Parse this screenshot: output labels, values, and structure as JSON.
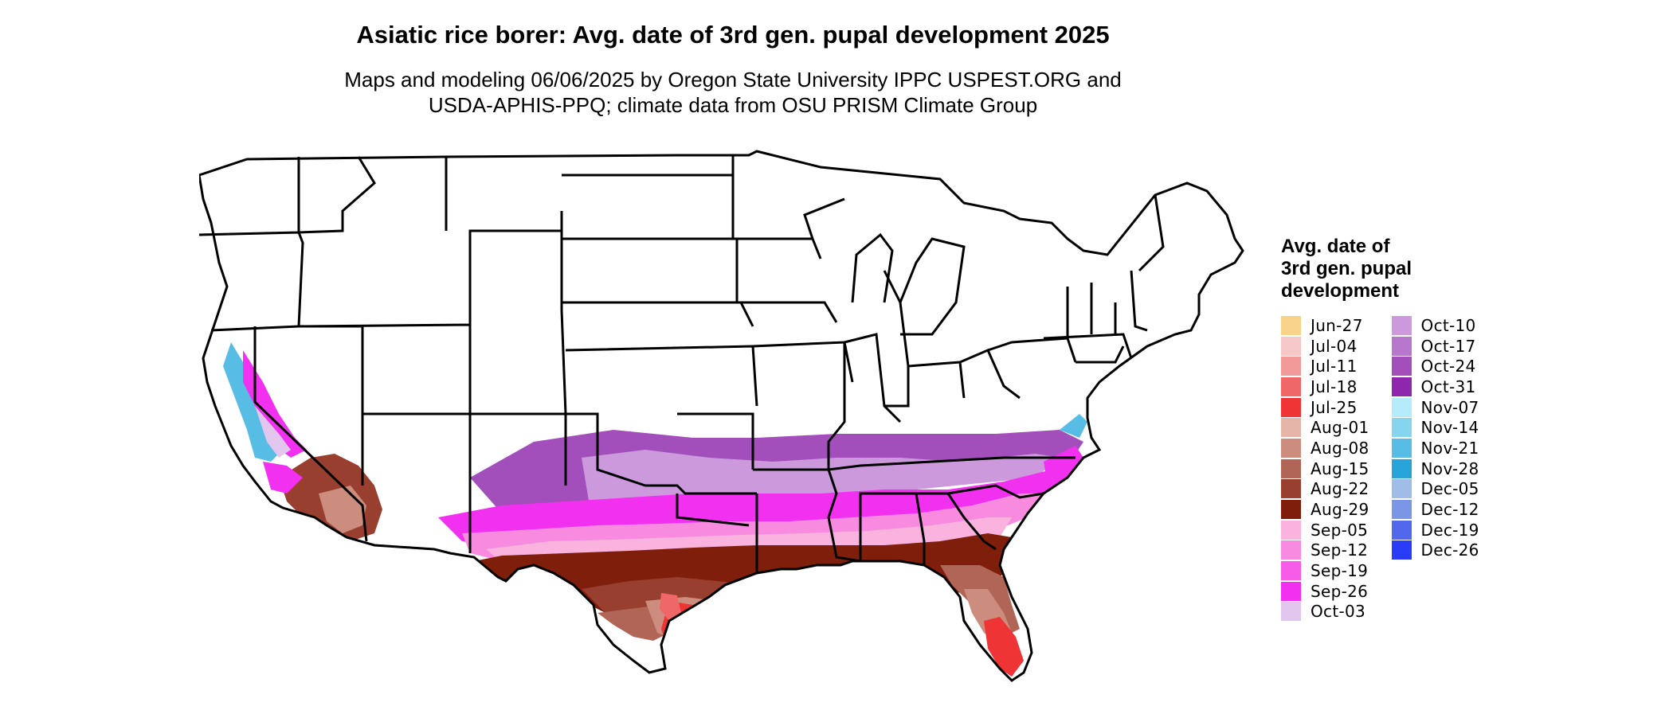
{
  "title": "Asiatic rice borer: Avg. date of 3rd gen. pupal development 2025",
  "subtitle_lines": [
    "Maps and modeling 06/06/2025 by Oregon State University IPPC USPEST.ORG and",
    "USDA-APHIS-PPQ; climate data from OSU PRISM Climate Group"
  ],
  "legend": {
    "title_lines": [
      "Avg. date of",
      "3rd gen. pupal",
      "development"
    ],
    "columns": [
      [
        {
          "label": "Jun-27",
          "color": "#f9d38a"
        },
        {
          "label": "Jul-04",
          "color": "#f5c7c7"
        },
        {
          "label": "Jul-11",
          "color": "#f29a9a"
        },
        {
          "label": "Jul-18",
          "color": "#ef6767"
        },
        {
          "label": "Jul-25",
          "color": "#ee3434"
        },
        {
          "label": "Aug-01",
          "color": "#e4b5a8"
        },
        {
          "label": "Aug-08",
          "color": "#cc8c7e"
        },
        {
          "label": "Aug-15",
          "color": "#b06556"
        },
        {
          "label": "Aug-22",
          "color": "#983f30"
        },
        {
          "label": "Aug-29",
          "color": "#801e0c"
        },
        {
          "label": "Sep-05",
          "color": "#f9b3de"
        },
        {
          "label": "Sep-12",
          "color": "#f88ae0"
        },
        {
          "label": "Sep-19",
          "color": "#f65ce8"
        },
        {
          "label": "Sep-26",
          "color": "#f230f0"
        },
        {
          "label": "Oct-03",
          "color": "#e3c6ee"
        }
      ],
      [
        {
          "label": "Oct-10",
          "color": "#cc99dd"
        },
        {
          "label": "Oct-17",
          "color": "#b777cc"
        },
        {
          "label": "Oct-24",
          "color": "#a24fbc"
        },
        {
          "label": "Oct-31",
          "color": "#8e27ae"
        },
        {
          "label": "Nov-07",
          "color": "#b5ecfb"
        },
        {
          "label": "Nov-14",
          "color": "#86d5ef"
        },
        {
          "label": "Nov-21",
          "color": "#57bde4"
        },
        {
          "label": "Nov-28",
          "color": "#26a3d8"
        },
        {
          "label": "Dec-05",
          "color": "#a0bde8"
        },
        {
          "label": "Dec-12",
          "color": "#7b96e6"
        },
        {
          "label": "Dec-19",
          "color": "#5168ec"
        },
        {
          "label": "Dec-26",
          "color": "#2a3df6"
        }
      ]
    ]
  },
  "map": {
    "region": "contiguous-united-states",
    "boundary_color": "#000000",
    "background_color": "#ffffff"
  }
}
